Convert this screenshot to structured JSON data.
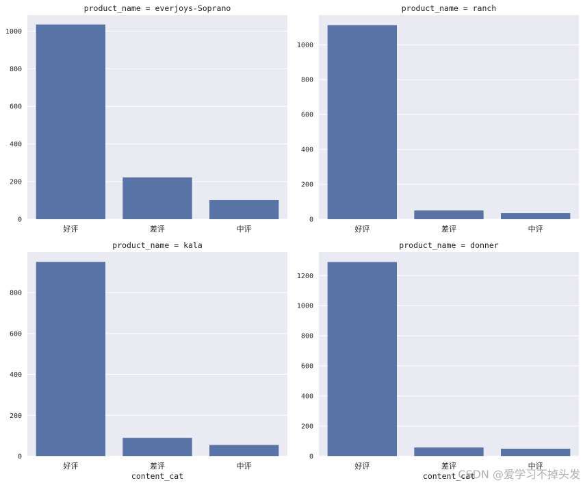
{
  "chart_data": [
    {
      "type": "bar",
      "title": "product_name = everjoys-Soprano",
      "categories": [
        "好评",
        "差评",
        "中评"
      ],
      "values": [
        1035,
        222,
        102
      ],
      "xlabel": "",
      "ylabel": "",
      "ylim": [
        0,
        1085
      ],
      "yticks": [
        0,
        200,
        400,
        600,
        800,
        1000
      ],
      "grid": true
    },
    {
      "type": "bar",
      "title": "product_name = ranch",
      "categories": [
        "好评",
        "差评",
        "中评"
      ],
      "values": [
        1112,
        50,
        35
      ],
      "xlabel": "",
      "ylabel": "",
      "ylim": [
        0,
        1170
      ],
      "yticks": [
        0,
        200,
        400,
        600,
        800,
        1000
      ],
      "grid": true
    },
    {
      "type": "bar",
      "title": "product_name = kala",
      "categories": [
        "好评",
        "差评",
        "中评"
      ],
      "values": [
        950,
        90,
        55
      ],
      "xlabel": "content_cat",
      "ylabel": "",
      "ylim": [
        0,
        998
      ],
      "yticks": [
        0,
        200,
        400,
        600,
        800
      ],
      "grid": true
    },
    {
      "type": "bar",
      "title": "product_name = donner",
      "categories": [
        "好评",
        "差评",
        "中评"
      ],
      "values": [
        1290,
        58,
        50
      ],
      "xlabel": "content_cat",
      "ylabel": "",
      "ylim": [
        0,
        1356
      ],
      "yticks": [
        0,
        200,
        400,
        600,
        800,
        1000,
        1200
      ],
      "grid": true
    }
  ],
  "colors": {
    "bar": "#5874a6",
    "panel_background": "#eaeaf2",
    "grid": "#ffffff",
    "text": "#222222"
  },
  "watermark": "CSDN @爱学习不掉头发"
}
